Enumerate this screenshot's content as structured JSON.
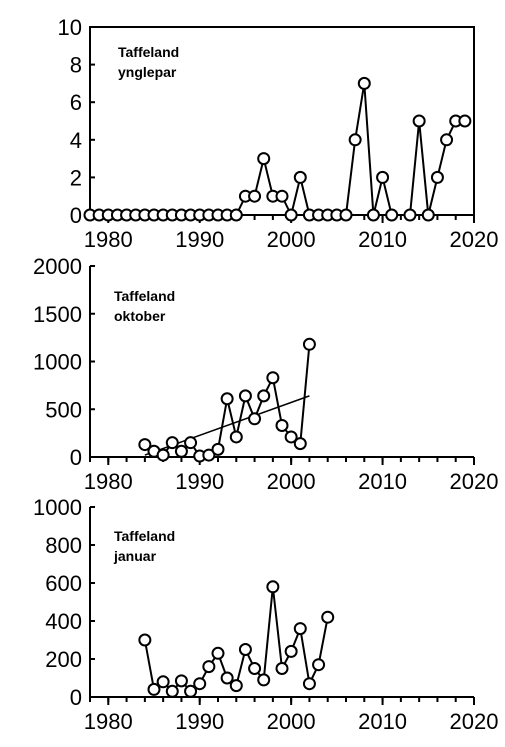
{
  "chart_data": [
    {
      "type": "line",
      "title": [
        "Taffeland",
        "ynglepar"
      ],
      "xlim": [
        1978,
        2020
      ],
      "ylim": [
        0,
        10
      ],
      "xticks": [
        1980,
        1990,
        2000,
        2010,
        2020
      ],
      "yticks": [
        0,
        2,
        4,
        6,
        8,
        10
      ],
      "grid": false,
      "x": [
        1978,
        1979,
        1980,
        1981,
        1982,
        1983,
        1984,
        1985,
        1986,
        1987,
        1988,
        1989,
        1990,
        1991,
        1992,
        1993,
        1994,
        1995,
        1996,
        1997,
        1998,
        1999,
        2000,
        2001,
        2002,
        2003,
        2004,
        2005,
        2006,
        2007,
        2008,
        2009,
        2010,
        2011,
        2012,
        2013,
        2014,
        2015,
        2016,
        2017,
        2018,
        2019
      ],
      "y": [
        0,
        0,
        0,
        0,
        0,
        0,
        0,
        0,
        0,
        0,
        0,
        0,
        0,
        0,
        0,
        0,
        0,
        1,
        1,
        3,
        1,
        1,
        0,
        2,
        0,
        0,
        0,
        0,
        0,
        4,
        7,
        0,
        2,
        0,
        null,
        0,
        5,
        0,
        2,
        4,
        5,
        5
      ],
      "trend": null
    },
    {
      "type": "line",
      "title": [
        "Taffeland",
        "oktober"
      ],
      "xlim": [
        1978,
        2020
      ],
      "ylim": [
        0,
        2000
      ],
      "xticks": [
        1980,
        1990,
        2000,
        2010,
        2020
      ],
      "yticks": [
        0,
        500,
        1000,
        1500,
        2000
      ],
      "grid": false,
      "x": [
        1984,
        1985,
        1986,
        1987,
        1988,
        1989,
        1990,
        1991,
        1992,
        1993,
        1994,
        1995,
        1996,
        1997,
        1998,
        1999,
        2000,
        2001,
        2002
      ],
      "y": [
        130,
        60,
        20,
        150,
        60,
        150,
        10,
        20,
        80,
        610,
        210,
        640,
        400,
        640,
        830,
        330,
        210,
        140,
        1180
      ],
      "trend": {
        "x": [
          1984,
          2002
        ],
        "y": [
          20,
          640
        ]
      }
    },
    {
      "type": "line",
      "title": [
        "Taffeland",
        "januar"
      ],
      "xlim": [
        1978,
        2020
      ],
      "ylim": [
        0,
        1000
      ],
      "xticks": [
        1980,
        1990,
        2000,
        2010,
        2020
      ],
      "yticks": [
        0,
        200,
        400,
        600,
        800,
        1000
      ],
      "grid": false,
      "x": [
        1984,
        1985,
        1986,
        1987,
        1988,
        1989,
        1990,
        1991,
        1992,
        1993,
        1994,
        1995,
        1996,
        1997,
        1998,
        1999,
        2000,
        2001,
        2002,
        2003,
        2004
      ],
      "y": [
        300,
        40,
        80,
        30,
        85,
        30,
        70,
        160,
        230,
        100,
        60,
        250,
        150,
        90,
        580,
        150,
        240,
        360,
        70,
        170,
        420
      ],
      "trend": null
    }
  ]
}
